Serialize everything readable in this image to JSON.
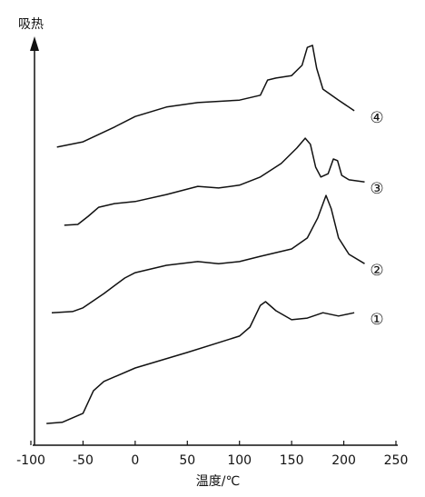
{
  "chart_data": {
    "type": "line",
    "y_label": "吸热",
    "x_label": "温度/℃",
    "xlim": [
      -100,
      250
    ],
    "xticks": [
      -100,
      -50,
      0,
      50,
      100,
      150,
      200,
      250
    ],
    "ylim": [
      0,
      100
    ],
    "grid": false,
    "series": [
      {
        "name": "①",
        "color": "#111111",
        "x": [
          -85,
          -70,
          -50,
          -40,
          -30,
          0,
          50,
          100,
          110,
          120,
          125,
          135,
          150,
          165,
          180,
          195,
          210
        ],
        "values": [
          5.3,
          5.6,
          7.8,
          13.3,
          15.6,
          18.9,
          22.7,
          26.7,
          28.9,
          34.2,
          35.1,
          32.9,
          30.7,
          31.1,
          32.4,
          31.6,
          32.4
        ]
      },
      {
        "name": "②",
        "color": "#111111",
        "x": [
          -80,
          -60,
          -50,
          -30,
          -10,
          0,
          30,
          60,
          80,
          100,
          120,
          150,
          165,
          175,
          183,
          188,
          195,
          205,
          220
        ],
        "values": [
          32.4,
          32.7,
          33.6,
          37.1,
          40.9,
          42.2,
          44,
          44.9,
          44.4,
          44.9,
          46.2,
          48,
          50.7,
          55.6,
          61.1,
          57.8,
          50.7,
          46.7,
          44.4
        ]
      },
      {
        "name": "③",
        "color": "#111111",
        "x": [
          -68,
          -55,
          -45,
          -35,
          -20,
          0,
          30,
          60,
          80,
          100,
          120,
          140,
          155,
          163,
          168,
          173,
          178,
          185,
          190,
          194,
          198,
          205,
          220
        ],
        "values": [
          53.8,
          54,
          56,
          58.2,
          59.1,
          59.6,
          61.3,
          63.3,
          62.9,
          63.6,
          65.6,
          68.9,
          72.7,
          75.1,
          73.6,
          68,
          65.6,
          66.4,
          70,
          69.6,
          66,
          64.9,
          64.4
        ]
      },
      {
        "name": "④",
        "color": "#111111",
        "x": [
          -75,
          -50,
          -20,
          0,
          30,
          60,
          100,
          120,
          127,
          135,
          150,
          160,
          165,
          170,
          174,
          180,
          195,
          210
        ],
        "values": [
          72.9,
          74.2,
          77.8,
          80.4,
          82.7,
          83.8,
          84.4,
          85.6,
          89.3,
          89.8,
          90.4,
          92.9,
          97.3,
          97.8,
          92.2,
          87.1,
          84.4,
          81.8
        ]
      }
    ]
  }
}
